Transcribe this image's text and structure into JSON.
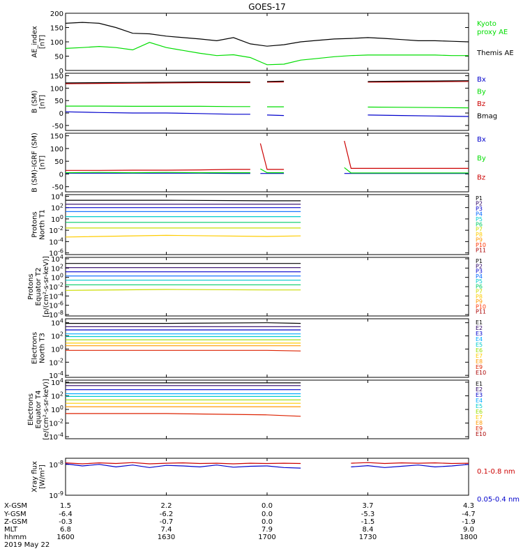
{
  "title": "GOES-17",
  "colors": {
    "black": "#000000",
    "red": "#cc0000",
    "green": "#00dd00",
    "blue": "#0000cc",
    "P1": "#000000",
    "P2": "#2a0066",
    "P3": "#0000cc",
    "P4": "#0066ff",
    "P5": "#00cccc",
    "P6": "#00cc66",
    "P7": "#ccdd00",
    "P8": "#ffcc00",
    "P9": "#ff9900",
    "P10": "#ff3300",
    "P11": "#aa0000",
    "E1": "#000000",
    "E2": "#2a0066",
    "E3": "#0000cc",
    "E4": "#00aaff",
    "E5": "#00cccc",
    "E6": "#99dd00",
    "E7": "#ffcc00",
    "E8": "#ff9900",
    "E9": "#dd2200",
    "E10": "#aa0000"
  },
  "chart_data": [
    {
      "type": "line",
      "id": "ae",
      "ylabel": [
        "AE_index",
        "[nT]"
      ],
      "yticks": [
        "200",
        "150",
        "100",
        "50",
        "0"
      ],
      "ylim": [
        0,
        200
      ],
      "x": [
        1600,
        1605,
        1610,
        1615,
        1620,
        1625,
        1630,
        1635,
        1640,
        1645,
        1650,
        1655,
        1700,
        1705,
        1710,
        1715,
        1720,
        1725,
        1730,
        1735,
        1740,
        1745,
        1750,
        1755,
        1800
      ],
      "series": [
        {
          "name": "Kyoto proxy AE",
          "color": "#00dd00",
          "values": [
            77,
            80,
            84,
            80,
            72,
            98,
            80,
            70,
            60,
            52,
            55,
            45,
            20,
            22,
            36,
            42,
            48,
            52,
            54,
            54,
            54,
            54,
            54,
            52,
            52
          ]
        },
        {
          "name": "Themis AE",
          "color": "#000000",
          "values": [
            165,
            168,
            165,
            150,
            130,
            128,
            120,
            115,
            110,
            104,
            115,
            93,
            85,
            90,
            100,
            105,
            110,
            112,
            115,
            112,
            108,
            104,
            104,
            102,
            100
          ]
        }
      ],
      "legend": [
        {
          "text": "Kyoto",
          "color": "#00dd00"
        },
        {
          "text": "proxy AE",
          "color": "#00dd00"
        },
        {
          "text": "Themis AE",
          "color": "#000000"
        }
      ]
    },
    {
      "type": "line",
      "id": "bsm",
      "ylabel": [
        "B (SM)",
        "[nT]"
      ],
      "yticks": [
        "150",
        "100",
        "50",
        "0",
        "-50"
      ],
      "ylim": [
        -70,
        160
      ],
      "x": [
        1600,
        1610,
        1620,
        1630,
        1640,
        1650,
        1655,
        1700,
        1705,
        1710,
        1730,
        1740,
        1750,
        1800
      ],
      "gaps": [
        [
          1656.5,
          1658
        ],
        [
          1708.5,
          1723
        ]
      ],
      "series": [
        {
          "name": "Bx",
          "color": "#0000cc",
          "values": [
            5,
            2,
            0,
            0,
            -2,
            -5,
            -5,
            -8,
            -10,
            -10,
            -8,
            -10,
            -12,
            -14
          ]
        },
        {
          "name": "By",
          "color": "#00dd00",
          "values": [
            28,
            28,
            27,
            27,
            27,
            26,
            26,
            25,
            25,
            25,
            24,
            23,
            22,
            21
          ]
        },
        {
          "name": "Bz",
          "color": "#cc0000",
          "values": [
            118,
            119,
            120,
            121,
            122,
            122,
            122,
            124,
            125,
            126,
            124,
            125,
            126,
            127
          ]
        },
        {
          "name": "Bmag",
          "color": "#000000",
          "values": [
            121,
            122,
            123,
            124,
            125,
            125,
            125,
            127,
            128,
            129,
            127,
            128,
            129,
            130
          ]
        }
      ],
      "legend": [
        {
          "text": "Bx",
          "color": "#0000cc"
        },
        {
          "text": "By",
          "color": "#00dd00"
        },
        {
          "text": "Bz",
          "color": "#cc0000"
        },
        {
          "text": "Bmag",
          "color": "#000000"
        }
      ]
    },
    {
      "type": "line",
      "id": "bigrf",
      "ylabel": [
        "B (SM)-IGRF (SM)",
        "[nT]"
      ],
      "yticks": [
        "150",
        "100",
        "50",
        "0",
        "-50"
      ],
      "ylim": [
        -70,
        160
      ],
      "x": [
        1600,
        1610,
        1620,
        1630,
        1640,
        1650,
        1655,
        1658,
        1700,
        1705,
        1710,
        1723,
        1725,
        1730,
        1740,
        1750,
        1800
      ],
      "gaps": [
        [
          1656,
          1657.8
        ],
        [
          1709,
          1722.5
        ]
      ],
      "series": [
        {
          "name": "Bx",
          "color": "#0000cc",
          "values": [
            3,
            3,
            3,
            3,
            3,
            2,
            2,
            2,
            2,
            2,
            2,
            2,
            2,
            2,
            2,
            2,
            2
          ]
        },
        {
          "name": "By",
          "color": "#00dd00",
          "values": [
            5,
            6,
            5,
            6,
            5,
            5,
            5,
            20,
            5,
            5,
            5,
            25,
            4,
            4,
            4,
            4,
            4
          ]
        },
        {
          "name": "Bz",
          "color": "#cc0000",
          "values": [
            14,
            14,
            15,
            15,
            16,
            18,
            18,
            120,
            18,
            18,
            18,
            130,
            22,
            22,
            22,
            22,
            22
          ]
        }
      ],
      "legend": [
        {
          "text": "Bx",
          "color": "#0000cc"
        },
        {
          "text": "By",
          "color": "#00dd00"
        },
        {
          "text": "Bz",
          "color": "#cc0000"
        }
      ]
    },
    {
      "type": "line",
      "id": "protons-north",
      "log": true,
      "ylabel": [
        "Protons",
        "North T1"
      ],
      "yticks": [
        "10^4",
        "10^2",
        "10^0",
        "10^-2",
        "10^-4",
        "10^-6"
      ],
      "ylim_log": [
        -6.3,
        4.3
      ],
      "x": [
        1600,
        1630,
        1700,
        1710
      ],
      "gaps": [
        [
          1711,
          1722
        ]
      ],
      "series_log": [
        {
          "name": "P1",
          "color": "#000000",
          "values": [
            3.3,
            3.3,
            3.2,
            3.2
          ]
        },
        {
          "name": "P2",
          "color": "#2a0066",
          "values": [
            2.6,
            2.6,
            2.6,
            2.6
          ]
        },
        {
          "name": "P3",
          "color": "#0000cc",
          "values": [
            2.0,
            2.0,
            2.0,
            2.0
          ]
        },
        {
          "name": "P4",
          "color": "#0066ff",
          "values": [
            1.3,
            1.3,
            1.3,
            1.3
          ]
        },
        {
          "name": "P5",
          "color": "#00cccc",
          "values": [
            0.4,
            0.4,
            0.4,
            0.4
          ]
        },
        {
          "name": "P6",
          "color": "#00cc66",
          "values": [
            -0.6,
            -0.6,
            -0.6,
            -0.6
          ]
        },
        {
          "name": "P7",
          "color": "#ccdd00",
          "values": [
            -1.6,
            -1.6,
            -1.6,
            -1.6
          ]
        },
        {
          "name": "P8",
          "color": "#ffcc00",
          "values": [
            -3.2,
            -2.9,
            -3.1,
            -3.0
          ]
        }
      ],
      "legend": [
        "P1",
        "P2",
        "P3",
        "P4",
        "P5",
        "P6",
        "P7",
        "P8",
        "P9",
        "P10",
        "P11"
      ]
    },
    {
      "type": "line",
      "id": "protons-equator",
      "log": true,
      "ylabel": [
        "Protons",
        "Equator T2",
        "[p/(cm²-s-sr-keV)]"
      ],
      "yticks": [
        "10^4",
        "10^2",
        "10^0",
        "10^-2",
        "10^-4",
        "10^-6",
        "10^-8"
      ],
      "ylim_log": [
        -8.3,
        4.3
      ],
      "x": [
        1600,
        1630,
        1700,
        1710
      ],
      "gaps": [
        [
          1711,
          1722
        ]
      ],
      "series_log": [
        {
          "name": "P1",
          "color": "#000000",
          "values": [
            3.0,
            3.0,
            3.0,
            3.0
          ]
        },
        {
          "name": "P2",
          "color": "#2a0066",
          "values": [
            2.1,
            2.1,
            2.1,
            2.1
          ]
        },
        {
          "name": "P3",
          "color": "#0000cc",
          "values": [
            1.2,
            1.2,
            1.2,
            1.2
          ]
        },
        {
          "name": "P4",
          "color": "#0066ff",
          "values": [
            0.3,
            0.3,
            0.3,
            0.3
          ]
        },
        {
          "name": "P5",
          "color": "#00cccc",
          "values": [
            -0.6,
            -0.6,
            -0.6,
            -0.6
          ]
        },
        {
          "name": "P6",
          "color": "#00cc66",
          "values": [
            -1.6,
            -1.6,
            -1.6,
            -1.6
          ]
        },
        {
          "name": "P7",
          "color": "#ccdd00",
          "values": [
            -2.8,
            -2.6,
            -2.7,
            -2.7
          ]
        }
      ],
      "legend": [
        "P1",
        "P2",
        "P3",
        "P4",
        "P5",
        "P6",
        "P7",
        "P8",
        "P9",
        "P10",
        "P11"
      ]
    },
    {
      "type": "line",
      "id": "electrons-north",
      "log": true,
      "ylabel": [
        "Electrons",
        "North T3"
      ],
      "yticks": [
        "10^4",
        "10^2",
        "10^0",
        "10^-2",
        "10^-4"
      ],
      "ylim_log": [
        -4.3,
        4.6
      ],
      "x": [
        1600,
        1630,
        1700,
        1710
      ],
      "gaps": [
        [
          1711,
          1722
        ]
      ],
      "series_log": [
        {
          "name": "E1",
          "color": "#000000",
          "values": [
            3.9,
            3.9,
            4.0,
            3.9
          ]
        },
        {
          "name": "E2",
          "color": "#2a0066",
          "values": [
            3.4,
            3.4,
            3.4,
            3.4
          ]
        },
        {
          "name": "E3",
          "color": "#0000cc",
          "values": [
            2.9,
            2.9,
            2.9,
            2.9
          ]
        },
        {
          "name": "E4",
          "color": "#00aaff",
          "values": [
            2.3,
            2.3,
            2.3,
            2.3
          ]
        },
        {
          "name": "E5",
          "color": "#00cccc",
          "values": [
            1.9,
            1.9,
            1.9,
            1.9
          ]
        },
        {
          "name": "E6",
          "color": "#99dd00",
          "values": [
            1.4,
            1.4,
            1.4,
            1.4
          ]
        },
        {
          "name": "E7",
          "color": "#ffcc00",
          "values": [
            0.9,
            0.9,
            0.9,
            0.9
          ]
        },
        {
          "name": "E8",
          "color": "#ff9900",
          "values": [
            0.5,
            0.5,
            0.5,
            0.5
          ]
        },
        {
          "name": "E9",
          "color": "#dd2200",
          "values": [
            -0.2,
            -0.2,
            -0.2,
            -0.3
          ]
        }
      ],
      "legend": [
        "E1",
        "E2",
        "E3",
        "E4",
        "E5",
        "E6",
        "E7",
        "E8",
        "E9",
        "E10"
      ]
    },
    {
      "type": "line",
      "id": "electrons-equator",
      "log": true,
      "ylabel": [
        "Electrons",
        "Equator T4",
        "[e/(cm²-s-sr-keV)]"
      ],
      "yticks": [
        "10^4",
        "10^2",
        "10^0",
        "10^-2",
        "10^-4"
      ],
      "ylim_log": [
        -4.3,
        4.3
      ],
      "x": [
        1600,
        1630,
        1700,
        1710
      ],
      "gaps": [
        [
          1711,
          1722
        ]
      ],
      "series_log": [
        {
          "name": "E1",
          "color": "#000000",
          "values": [
            3.9,
            3.9,
            3.9,
            3.9
          ]
        },
        {
          "name": "E2",
          "color": "#2a0066",
          "values": [
            3.5,
            3.5,
            3.5,
            3.5
          ]
        },
        {
          "name": "E3",
          "color": "#0000cc",
          "values": [
            2.9,
            2.9,
            2.9,
            2.9
          ]
        },
        {
          "name": "E4",
          "color": "#00aaff",
          "values": [
            2.3,
            2.3,
            2.3,
            2.3
          ]
        },
        {
          "name": "E5",
          "color": "#00cccc",
          "values": [
            1.9,
            1.9,
            1.9,
            1.9
          ]
        },
        {
          "name": "E6",
          "color": "#99dd00",
          "values": [
            1.4,
            1.4,
            1.4,
            1.4
          ]
        },
        {
          "name": "E7",
          "color": "#ffcc00",
          "values": [
            0.9,
            0.9,
            0.9,
            0.9
          ]
        },
        {
          "name": "E8",
          "color": "#ff9900",
          "values": [
            0.4,
            0.4,
            0.4,
            0.4
          ]
        },
        {
          "name": "E9",
          "color": "#dd2200",
          "values": [
            -0.6,
            -0.6,
            -0.8,
            -1.0
          ]
        }
      ],
      "legend": [
        "E1",
        "E2",
        "E3",
        "E4",
        "E5",
        "E6",
        "E7",
        "E8",
        "E9",
        "E10"
      ]
    },
    {
      "type": "line",
      "id": "xray",
      "log": true,
      "ylabel": [
        "Xray flux",
        "[W/m²]"
      ],
      "yticks": [
        "10^-8",
        "10^-9"
      ],
      "ylim_log": [
        -9.0,
        -7.8
      ],
      "x": [
        1600,
        1605,
        1610,
        1615,
        1620,
        1625,
        1630,
        1635,
        1640,
        1645,
        1650,
        1655,
        1700,
        1705,
        1710,
        1720,
        1725,
        1730,
        1735,
        1740,
        1745,
        1750,
        1755,
        1800
      ],
      "gaps": [
        [
          1711,
          1721
        ]
      ],
      "series_log": [
        {
          "name": "0.1-0.8 nm",
          "color": "#cc0000",
          "values": [
            -7.95,
            -7.98,
            -7.95,
            -7.97,
            -7.94,
            -7.98,
            -7.96,
            -7.95,
            -7.97,
            -7.96,
            -7.98,
            -7.96,
            -7.97,
            -7.96,
            -7.97,
            -7.95,
            -7.96,
            -7.94,
            -7.97,
            -7.95,
            -7.96,
            -7.95,
            -7.97,
            -7.96
          ]
        },
        {
          "name": "0.05-0.4 nm",
          "color": "#0000cc",
          "values": [
            -7.98,
            -8.05,
            -8.0,
            -8.08,
            -8.02,
            -8.1,
            -8.03,
            -8.05,
            -8.08,
            -8.02,
            -8.09,
            -8.06,
            -8.05,
            -8.1,
            -8.12,
            -8.05,
            -8.08,
            -8.04,
            -8.1,
            -8.06,
            -8.02,
            -8.08,
            -8.05,
            -8.0
          ]
        }
      ],
      "legend": [
        {
          "text": "0.1-0.8 nm",
          "color": "#cc0000"
        },
        {
          "text": "0.05-0.4 nm",
          "color": "#0000cc"
        }
      ]
    }
  ],
  "xaxis": {
    "range": [
      1600,
      1800
    ],
    "ticks": [
      1600,
      1630,
      1700,
      1730,
      1800
    ],
    "rows": [
      {
        "label": "X-GSM",
        "values": [
          "1.5",
          "2.2",
          "0.0",
          "3.7",
          "4.3"
        ]
      },
      {
        "label": "Y-GSM",
        "values": [
          "-6.4",
          "-6.2",
          "0.0",
          "-5.3",
          "-4.7"
        ]
      },
      {
        "label": "Z-GSM",
        "values": [
          "-0.3",
          "-0.7",
          "0.0",
          "-1.5",
          "-1.9"
        ]
      },
      {
        "label": "MLT",
        "values": [
          "6.8",
          "7.4",
          "7.9",
          "8.4",
          "9.0"
        ]
      },
      {
        "label": "hhmm",
        "values": [
          "1600",
          "1630",
          "1700",
          "1730",
          "1800"
        ]
      }
    ],
    "date": "2019 May 22"
  }
}
